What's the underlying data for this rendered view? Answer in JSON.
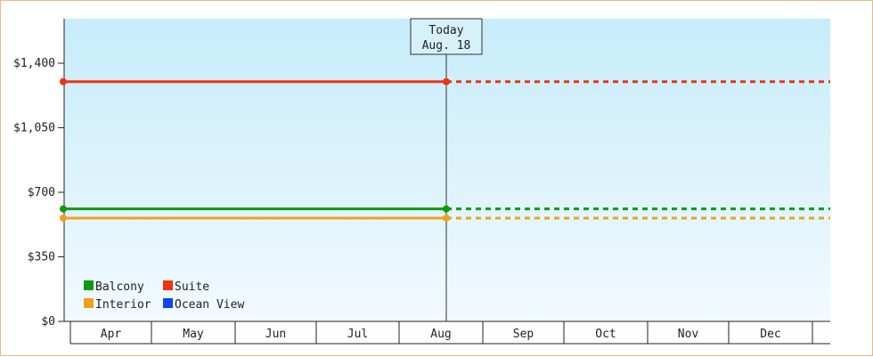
{
  "chart_data": {
    "type": "line",
    "x_categories": [
      "Apr",
      "May",
      "Jun",
      "Jul",
      "Aug",
      "Sep",
      "Oct",
      "Nov",
      "Dec"
    ],
    "y_ticks": [
      "$0",
      "$350",
      "$700",
      "$1,050",
      "$1,400"
    ],
    "ylim": [
      0,
      1400
    ],
    "grid": false,
    "legend_position": "bottom-left",
    "today_marker": {
      "line1": "Today",
      "line2": "Aug. 18",
      "x_month_index": 4
    },
    "series": [
      {
        "name": "Balcony",
        "color": "#119911",
        "values": [
          610,
          610
        ],
        "x_month_index": [
          0,
          4
        ],
        "projected_value": 610
      },
      {
        "name": "Suite",
        "color": "#ee3311",
        "values": [
          1300,
          1300
        ],
        "x_month_index": [
          0,
          4
        ],
        "projected_value": 1300
      },
      {
        "name": "Interior",
        "color": "#f0a020",
        "values": [
          560,
          560
        ],
        "x_month_index": [
          0,
          4
        ],
        "projected_value": 560
      },
      {
        "name": "Ocean View",
        "color": "#1144ee",
        "values": [],
        "x_month_index": [],
        "projected_value": null
      }
    ],
    "legend_order": [
      "Balcony",
      "Suite",
      "Interior",
      "Ocean View"
    ]
  }
}
